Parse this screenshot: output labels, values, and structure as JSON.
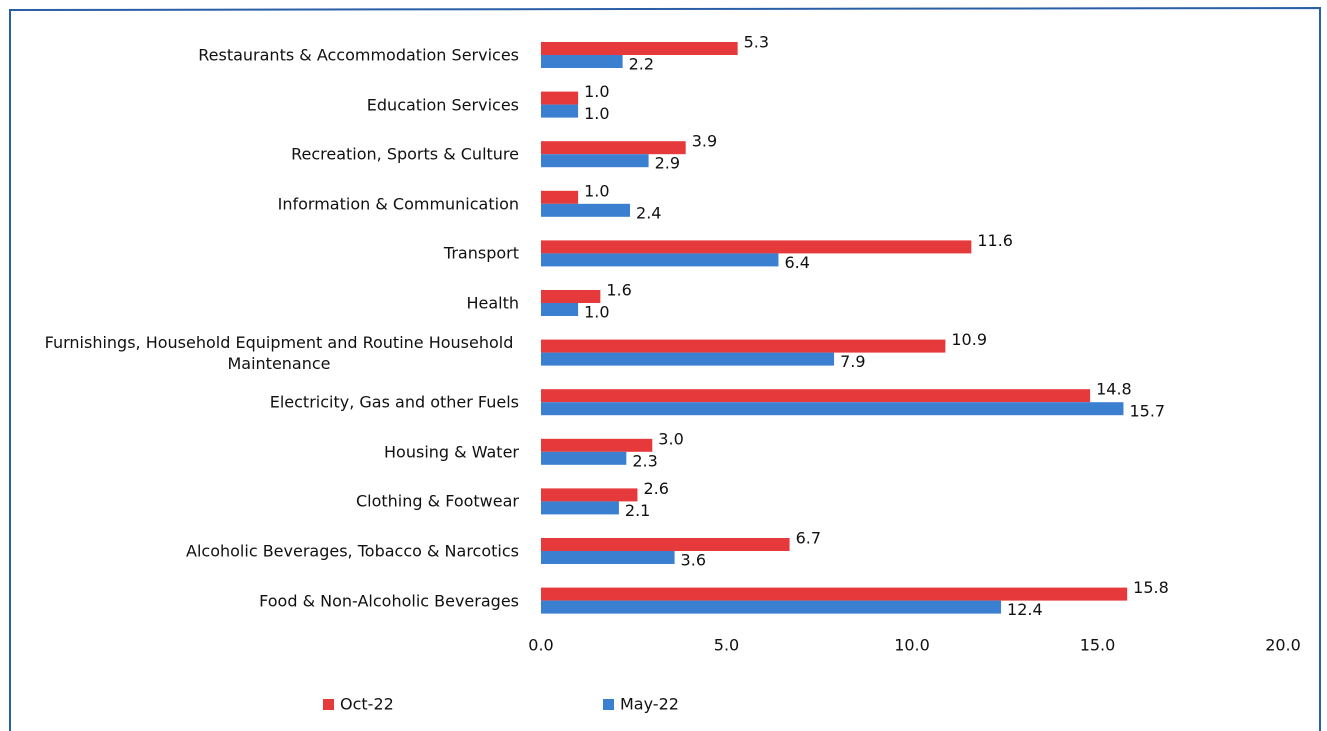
{
  "chart_data": {
    "type": "hbar",
    "categories": [
      "Restaurants & Accommodation Services",
      "Education Services",
      "Recreation, Sports & Culture",
      "Information & Communication",
      "Transport",
      "Health",
      "Furnishings, Household Equipment and Routine Household Maintenance",
      "Electricity, Gas and other Fuels",
      "Housing & Water",
      "Clothing & Footwear",
      "Alcoholic Beverages, Tobacco & Narcotics",
      "Food & Non-Alcoholic Beverages"
    ],
    "series": [
      {
        "name": "Oct-22",
        "color": "#e5393b",
        "values": [
          5.3,
          1,
          3.9,
          1,
          11.6,
          1.6,
          10.9,
          14.8,
          3,
          2.6,
          6.7,
          15.8
        ],
        "value_labels": [
          "5.3",
          "1.0",
          "3.9",
          "1.0",
          "11.6",
          "1.6",
          "10.9",
          "14.8",
          "3.0",
          "2.6",
          "6.7",
          "15.8"
        ]
      },
      {
        "name": "May-22",
        "color": "#3b7fd1",
        "values": [
          2.2,
          1,
          2.9,
          2.4,
          6.4,
          1,
          7.9,
          15.7,
          2.3,
          2.1,
          3.6,
          12.4
        ],
        "value_labels": [
          "2.2",
          "1.0",
          "2.9",
          "2.4",
          "6.4",
          "1.0",
          "7.9",
          "15.7",
          "2.3",
          "2.1",
          "3.6",
          "12.4"
        ]
      }
    ],
    "xlim": [
      0,
      20
    ],
    "xticks": [
      {
        "value": 0,
        "label": "0.0"
      },
      {
        "value": 5,
        "label": "5.0"
      },
      {
        "value": 10,
        "label": "10.0"
      },
      {
        "value": 15,
        "label": "15.0"
      },
      {
        "value": 20,
        "label": "20.0"
      }
    ]
  }
}
